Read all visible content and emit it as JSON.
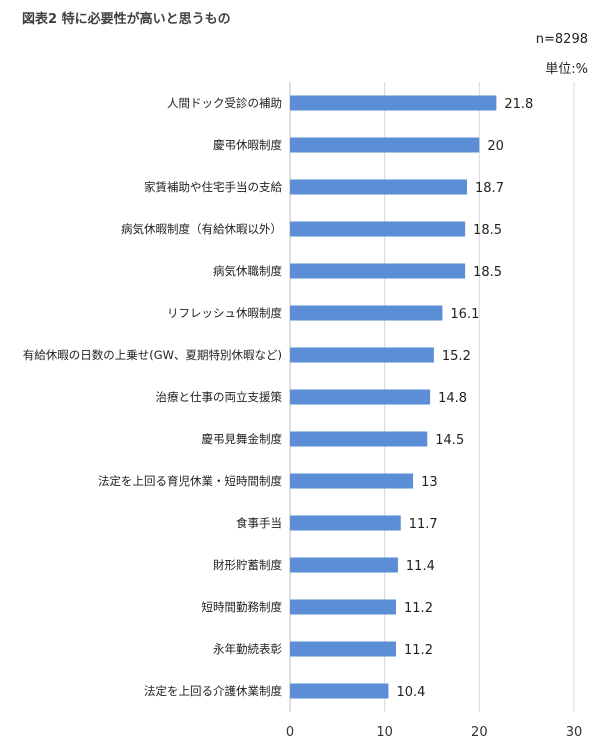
{
  "header": {
    "title": "図表2 特に必要性が高いと思うもの",
    "sample": "n=8298",
    "unit": "単位:%"
  },
  "chart_data": {
    "type": "bar",
    "orientation": "horizontal",
    "categories": [
      "人間ドック受診の補助",
      "慶弔休暇制度",
      "家賃補助や住宅手当の支給",
      "病気休暇制度（有給休暇以外）",
      "病気休職制度",
      "リフレッシュ休暇制度",
      "有給休暇の日数の上乗せ(GW、夏期特別休暇など)",
      "治療と仕事の両立支援策",
      "慶弔見舞金制度",
      "法定を上回る育児休業・短時間制度",
      "食事手当",
      "財形貯蓄制度",
      "短時間勤務制度",
      "永年勤続表彰",
      "法定を上回る介護休業制度"
    ],
    "values": [
      21.8,
      20,
      18.7,
      18.5,
      18.5,
      16.1,
      15.2,
      14.8,
      14.5,
      13,
      11.7,
      11.4,
      11.2,
      11.2,
      10.4
    ],
    "xlim": [
      0,
      30
    ],
    "xticks": [
      0,
      10,
      20,
      30
    ],
    "grid": true,
    "bar_color": "#5B8ED6",
    "grid_color": "#D9D9D9"
  }
}
